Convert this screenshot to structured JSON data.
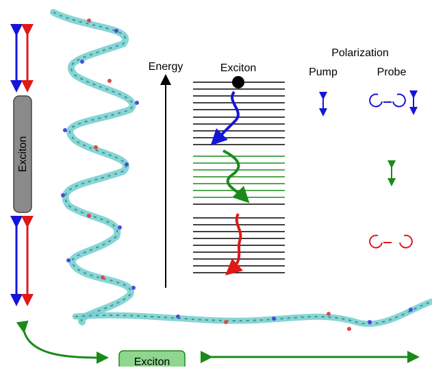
{
  "labels": {
    "energy": "Energy",
    "exciton_top": "Exciton",
    "polarization": "Polarization",
    "pump": "Pump",
    "probe": "Probe",
    "exciton_vertical": "Exciton",
    "exciton_bottom": "Exciton"
  },
  "probe_symbols": {
    "top": "→",
    "bottom": ""
  },
  "colors": {
    "blue": "#1515d8",
    "red": "#e01818",
    "green": "#1a8a1a",
    "green_box": "#8fd68f",
    "gray_box": "#8a8a8a",
    "molecule_carbon": "#7ad0d0",
    "molecule_nitrogen": "#4a4ae0",
    "molecule_oxygen": "#e04848",
    "black": "#000000"
  },
  "icons": {
    "circular_polarization": "circular-arrow-icon",
    "linear_polarization": "double-headed-arrow-icon",
    "exciton_particle": "filled-circle-icon"
  }
}
